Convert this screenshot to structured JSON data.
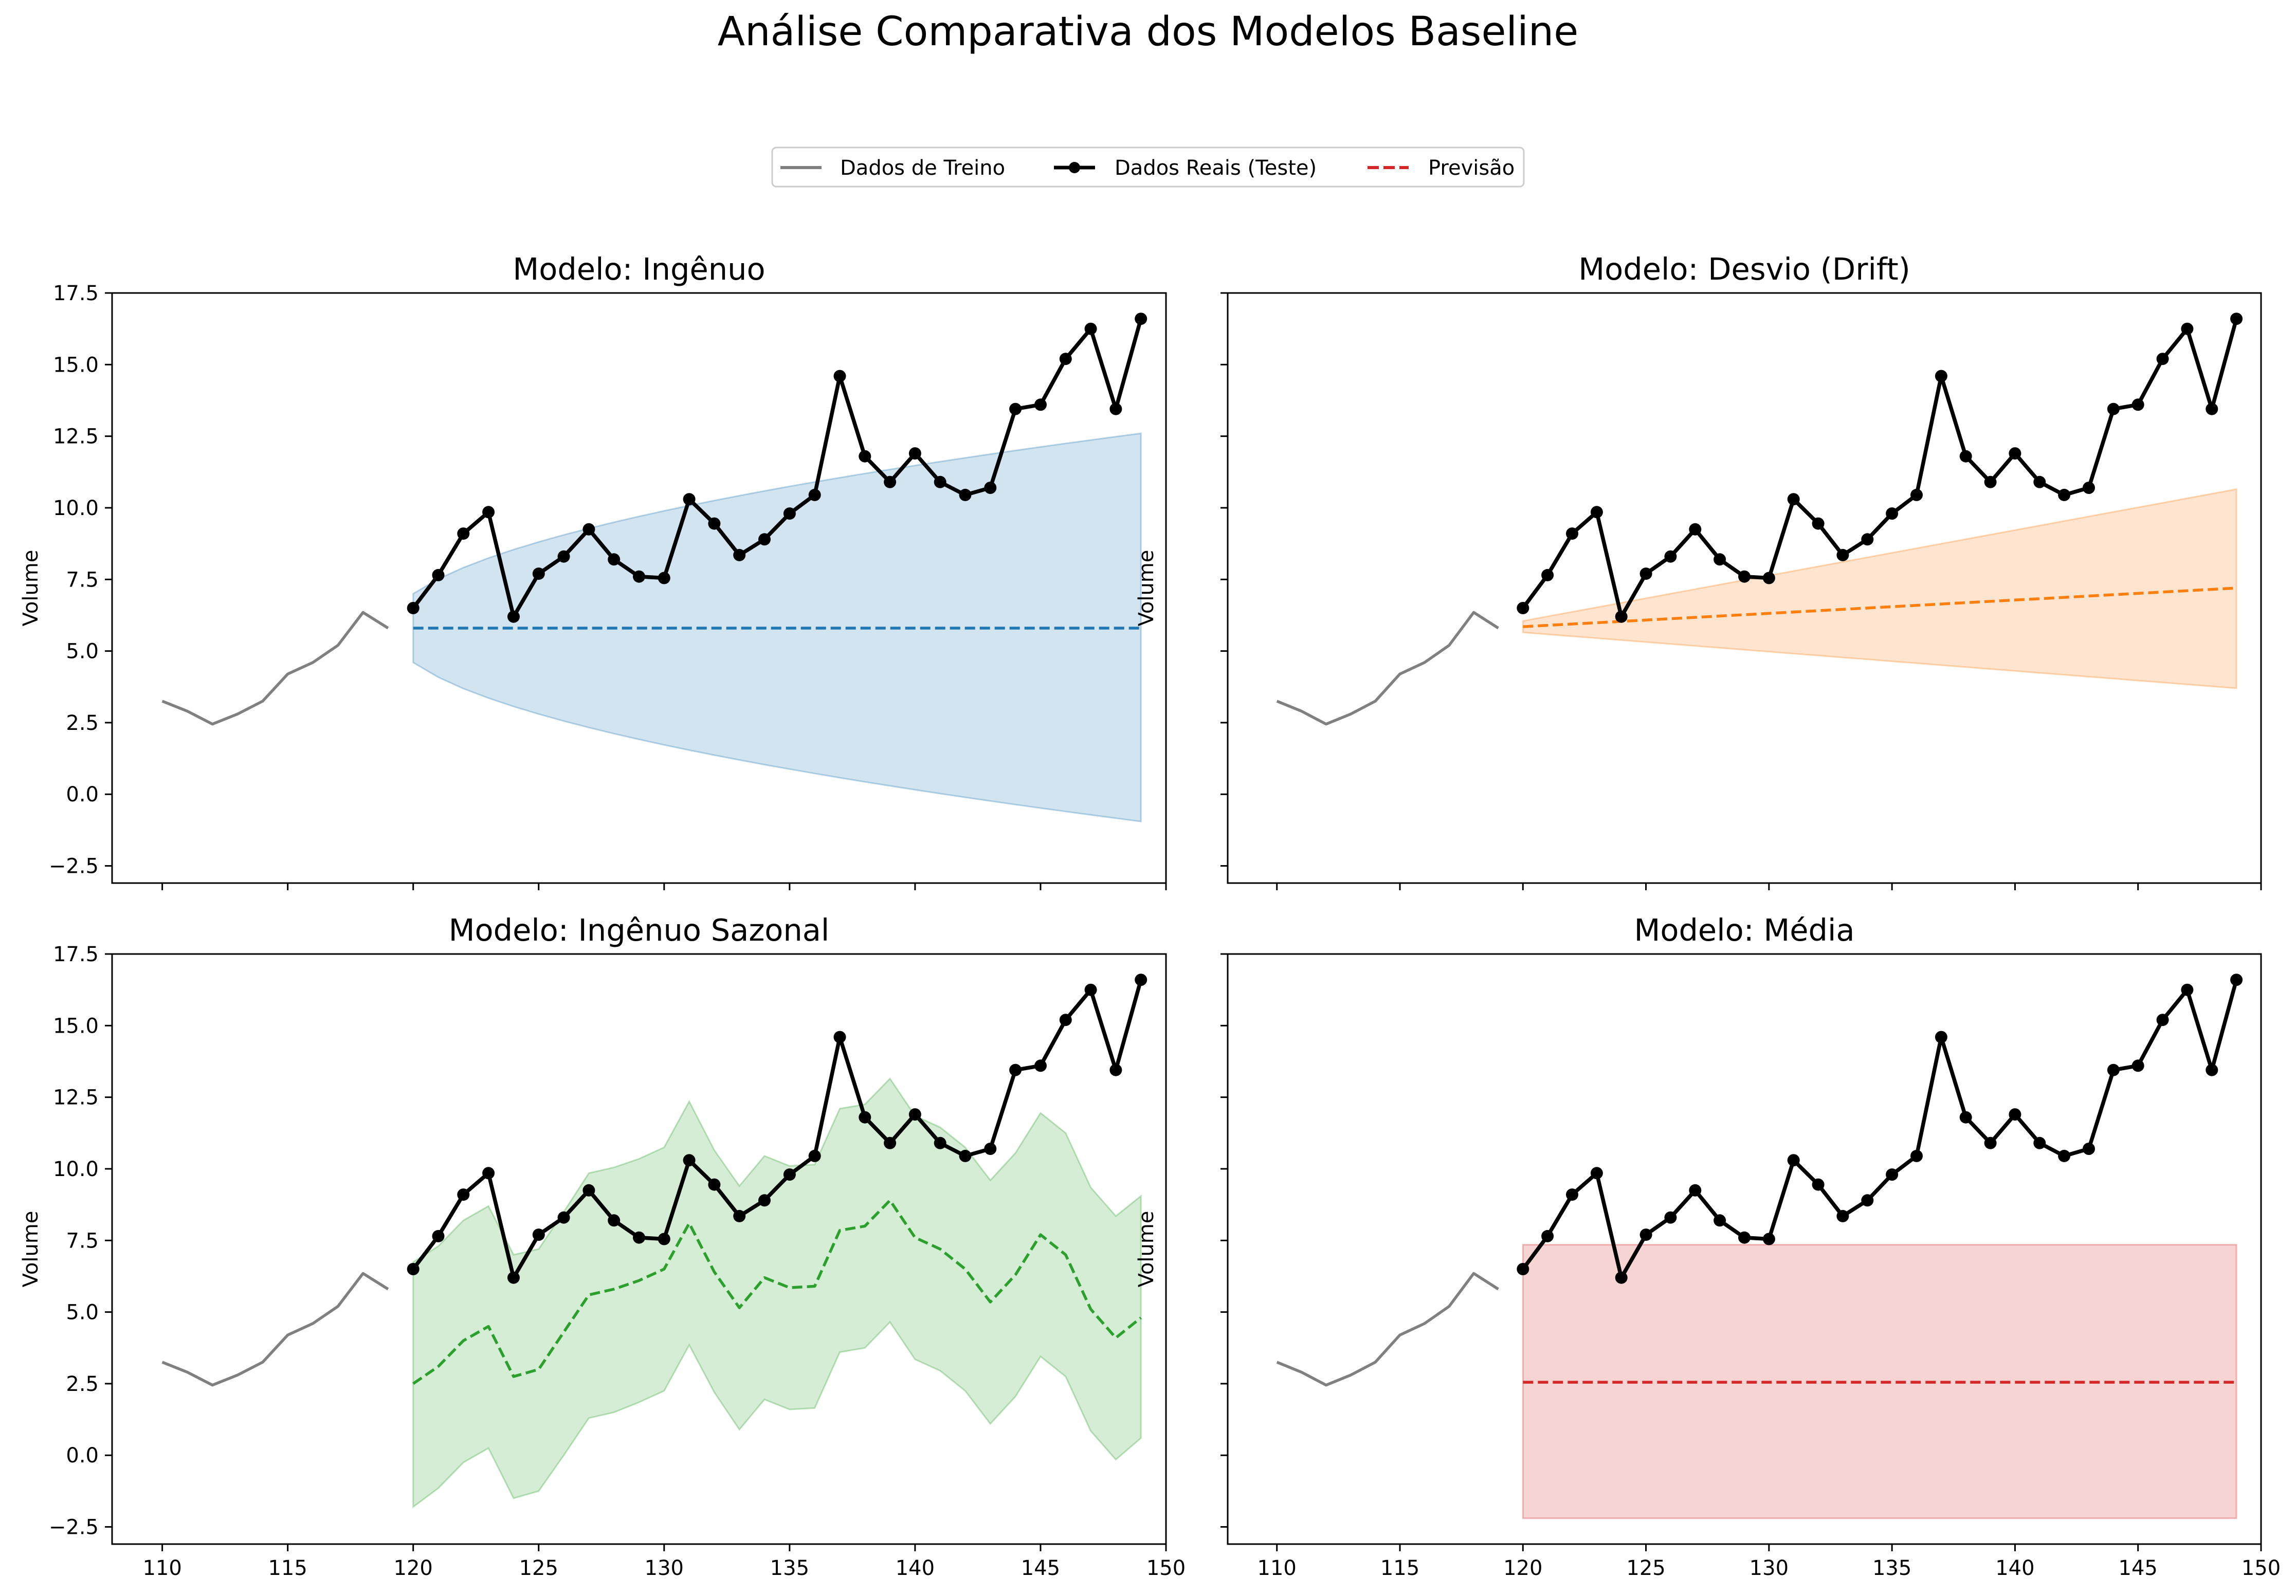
{
  "figure": {
    "title": "Análise Comparativa dos Modelos Baseline"
  },
  "legend": {
    "placement": "top-center",
    "items": [
      {
        "label": "Dados de Treino",
        "style": "line",
        "color": "#808080"
      },
      {
        "label": "Dados Reais (Teste)",
        "style": "line-marker",
        "color": "#000000"
      },
      {
        "label": "Previsão",
        "style": "dashed",
        "color": "#d62728"
      }
    ]
  },
  "colors": {
    "train": "#808080",
    "test": "#000000",
    "naive": "#1f77b4",
    "drift": "#ff7f0e",
    "seasonal": "#2ca02c",
    "mean": "#d62728"
  },
  "chart_data": [
    {
      "type": "line",
      "title": "Modelo: Ingênuo",
      "ylabel": "Volume",
      "xlim": [
        108,
        150
      ],
      "ylim": [
        -3.1,
        17.5
      ],
      "xticks": [
        110,
        115,
        120,
        125,
        130,
        135,
        140,
        145,
        150
      ],
      "yticks": [
        -2.5,
        0.0,
        2.5,
        5.0,
        7.5,
        10.0,
        12.5,
        15.0,
        17.5
      ],
      "show_xtick_labels": false,
      "show_ytick_labels": true,
      "color_key": "naive",
      "forecast": {
        "type": "constant",
        "value": 5.8
      },
      "interval": {
        "type": "sqrt",
        "lower_start": 4.6,
        "upper_start": 7.0,
        "lower_end": -0.95,
        "upper_end": 12.6
      }
    },
    {
      "type": "line",
      "title": "Modelo: Desvio (Drift)",
      "ylabel": "Volume",
      "xlim": [
        108,
        150
      ],
      "ylim": [
        -3.1,
        17.5
      ],
      "xticks": [
        110,
        115,
        120,
        125,
        130,
        135,
        140,
        145,
        150
      ],
      "yticks": [
        -2.5,
        0.0,
        2.5,
        5.0,
        7.5,
        10.0,
        12.5,
        15.0,
        17.5
      ],
      "show_xtick_labels": false,
      "show_ytick_labels": false,
      "color_key": "drift",
      "forecast": {
        "type": "linear",
        "start": 5.85,
        "end": 7.2
      },
      "interval": {
        "type": "linear",
        "lower_start": 5.65,
        "upper_start": 6.05,
        "lower_end": 3.7,
        "upper_end": 10.65
      }
    },
    {
      "type": "line",
      "title": "Modelo: Ingênuo Sazonal",
      "ylabel": "Volume",
      "xlim": [
        108,
        150
      ],
      "ylim": [
        -3.1,
        17.5
      ],
      "xticks": [
        110,
        115,
        120,
        125,
        130,
        135,
        140,
        145,
        150
      ],
      "yticks": [
        -2.5,
        0.0,
        2.5,
        5.0,
        7.5,
        10.0,
        12.5,
        15.0,
        17.5
      ],
      "show_xtick_labels": true,
      "show_ytick_labels": true,
      "color_key": "seasonal",
      "forecast": {
        "type": "series",
        "values": [
          2.5,
          3.1,
          4.0,
          4.5,
          2.75,
          3.0,
          4.3,
          5.6,
          5.8,
          6.1,
          6.5,
          8.1,
          6.4,
          5.15,
          6.2,
          5.85,
          5.9,
          7.85,
          8.0,
          8.9,
          7.6,
          7.2,
          6.5,
          5.35,
          6.3,
          7.7,
          7.0,
          5.1,
          4.1,
          4.8
        ]
      },
      "interval": {
        "type": "series",
        "lower": [
          -1.8,
          -1.15,
          -0.25,
          0.25,
          -1.5,
          -1.25,
          0.0,
          1.3,
          1.5,
          1.85,
          2.25,
          3.85,
          2.2,
          0.9,
          1.95,
          1.6,
          1.65,
          3.6,
          3.75,
          4.65,
          3.35,
          2.95,
          2.25,
          1.1,
          2.05,
          3.45,
          2.75,
          0.85,
          -0.15,
          0.6
        ],
        "upper": [
          6.75,
          7.3,
          8.2,
          8.7,
          7.0,
          7.2,
          8.5,
          9.85,
          10.05,
          10.35,
          10.75,
          12.35,
          10.65,
          9.4,
          10.45,
          10.1,
          10.15,
          12.1,
          12.25,
          13.15,
          11.85,
          11.45,
          10.75,
          9.6,
          10.55,
          11.95,
          11.25,
          9.35,
          8.35,
          9.05
        ]
      }
    },
    {
      "type": "line",
      "title": "Modelo: Média",
      "ylabel": "Volume",
      "xlim": [
        108,
        150
      ],
      "ylim": [
        -3.1,
        17.5
      ],
      "xticks": [
        110,
        115,
        120,
        125,
        130,
        135,
        140,
        145,
        150
      ],
      "yticks": [
        -2.5,
        0.0,
        2.5,
        5.0,
        7.5,
        10.0,
        12.5,
        15.0,
        17.5
      ],
      "show_xtick_labels": true,
      "show_ytick_labels": false,
      "color_key": "mean",
      "forecast": {
        "type": "constant",
        "value": 2.55
      },
      "interval": {
        "type": "constant",
        "lower": -2.2,
        "upper": 7.35
      }
    }
  ],
  "train_series": {
    "x": [
      110,
      111,
      112,
      113,
      114,
      115,
      116,
      117,
      118,
      119
    ],
    "y": [
      3.25,
      2.9,
      2.45,
      2.8,
      3.25,
      4.2,
      4.6,
      5.2,
      6.35,
      5.8
    ]
  },
  "test_series": {
    "x": [
      120,
      121,
      122,
      123,
      124,
      125,
      126,
      127,
      128,
      129,
      130,
      131,
      132,
      133,
      134,
      135,
      136,
      137,
      138,
      139,
      140,
      141,
      142,
      143,
      144,
      145,
      146,
      147,
      148,
      149
    ],
    "y": [
      6.5,
      7.65,
      9.1,
      9.85,
      6.2,
      7.7,
      8.3,
      9.25,
      8.2,
      7.6,
      7.55,
      10.3,
      9.45,
      8.35,
      8.9,
      9.8,
      10.45,
      14.6,
      11.8,
      10.9,
      11.9,
      10.9,
      10.45,
      10.7,
      13.45,
      13.6,
      15.2,
      16.25,
      13.45,
      16.6
    ]
  }
}
